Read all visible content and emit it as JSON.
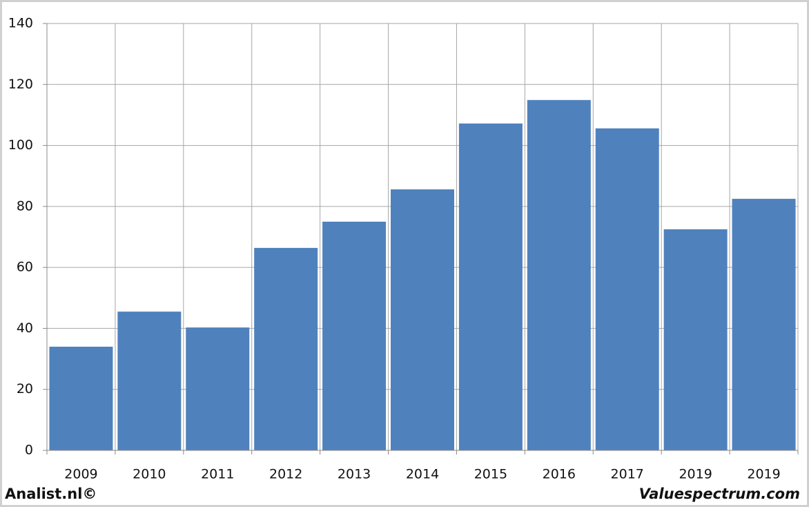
{
  "chart_data": {
    "type": "bar",
    "categories": [
      "2009",
      "2010",
      "2011",
      "2012",
      "2013",
      "2014",
      "2015",
      "2016",
      "2017",
      "2019",
      "2019"
    ],
    "values": [
      34.0,
      45.5,
      40.3,
      66.4,
      75.0,
      85.6,
      107.2,
      114.9,
      105.6,
      72.5,
      82.5
    ],
    "color": "#4f81bd",
    "ylim": [
      0,
      140
    ],
    "yticks": [
      0,
      20,
      40,
      60,
      80,
      100,
      120,
      140
    ],
    "grid": true,
    "annotations": [
      "Analist.nl©",
      "Valuespectrum.com"
    ]
  }
}
